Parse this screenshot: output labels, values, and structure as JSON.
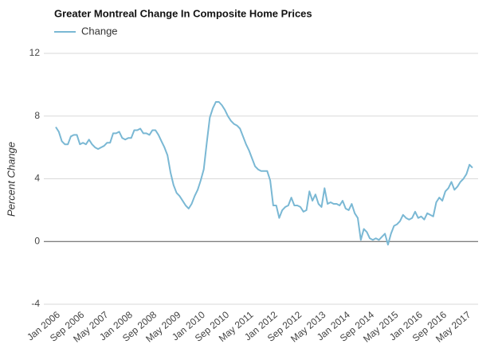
{
  "chart_data": {
    "type": "line",
    "title": "Greater Montreal Change In Composite Home Prices",
    "y_label": "Percent Change",
    "categories": [
      "Jan 2006",
      null,
      null,
      null,
      null,
      null,
      null,
      null,
      "Sep 2006",
      null,
      null,
      null,
      null,
      null,
      null,
      null,
      "May 2007",
      null,
      null,
      null,
      null,
      null,
      null,
      null,
      "Jan 2008",
      null,
      null,
      null,
      null,
      null,
      null,
      null,
      "Sep 2008",
      null,
      null,
      null,
      null,
      null,
      null,
      null,
      "May 2009",
      null,
      null,
      null,
      null,
      null,
      null,
      null,
      "Jan 2010",
      null,
      null,
      null,
      null,
      null,
      null,
      null,
      "Sep 2010",
      null,
      null,
      null,
      null,
      null,
      null,
      null,
      "May 2011",
      null,
      null,
      null,
      null,
      null,
      null,
      null,
      "Jan 2012",
      null,
      null,
      null,
      null,
      null,
      null,
      null,
      "Sep 2012",
      null,
      null,
      null,
      null,
      null,
      null,
      null,
      "May 2013",
      null,
      null,
      null,
      null,
      null,
      null,
      null,
      "Jan 2014",
      null,
      null,
      null,
      null,
      null,
      null,
      null,
      "Sep 2014",
      null,
      null,
      null,
      null,
      null,
      null,
      null,
      "May 2015",
      null,
      null,
      null,
      null,
      null,
      null,
      null,
      "Jan 2016",
      null,
      null,
      null,
      null,
      null,
      null,
      null,
      "Sep 2016",
      null,
      null,
      null,
      null,
      null,
      null,
      null,
      "May 2017",
      null,
      null
    ],
    "series": [
      {
        "name": "Change",
        "color": "#7ab8d4",
        "values": [
          7.3,
          7.0,
          6.4,
          6.2,
          6.2,
          6.7,
          6.8,
          6.8,
          6.2,
          6.3,
          6.2,
          6.5,
          6.2,
          6.0,
          5.9,
          6.0,
          6.1,
          6.3,
          6.3,
          6.9,
          6.9,
          7.0,
          6.6,
          6.5,
          6.6,
          6.6,
          7.1,
          7.1,
          7.2,
          6.9,
          6.9,
          6.8,
          7.1,
          7.1,
          6.8,
          6.4,
          6.0,
          5.5,
          4.4,
          3.6,
          3.1,
          2.9,
          2.6,
          2.3,
          2.1,
          2.4,
          2.9,
          3.3,
          3.9,
          4.6,
          6.3,
          7.9,
          8.5,
          8.9,
          8.9,
          8.7,
          8.4,
          8.0,
          7.7,
          7.5,
          7.4,
          7.2,
          6.7,
          6.2,
          5.8,
          5.3,
          4.8,
          4.6,
          4.5,
          4.5,
          4.5,
          3.9,
          2.3,
          2.3,
          1.5,
          2.0,
          2.2,
          2.3,
          2.8,
          2.3,
          2.3,
          2.2,
          1.9,
          2.0,
          3.2,
          2.6,
          3.0,
          2.4,
          2.2,
          3.4,
          2.4,
          2.5,
          2.4,
          2.4,
          2.3,
          2.6,
          2.1,
          2.0,
          2.4,
          1.8,
          1.5,
          0.1,
          0.8,
          0.6,
          0.2,
          0.1,
          0.2,
          0.1,
          0.3,
          0.5,
          -0.2,
          0.5,
          1.0,
          1.1,
          1.3,
          1.7,
          1.5,
          1.4,
          1.5,
          1.9,
          1.5,
          1.6,
          1.4,
          1.8,
          1.7,
          1.6,
          2.5,
          2.8,
          2.6,
          3.2,
          3.4,
          3.8,
          3.3,
          3.5,
          3.8,
          4.0,
          4.3,
          4.9,
          4.7
        ]
      }
    ],
    "ylim": [
      -4,
      12
    ],
    "yticks": [
      -4,
      0,
      4,
      8,
      12
    ],
    "grid": true
  }
}
